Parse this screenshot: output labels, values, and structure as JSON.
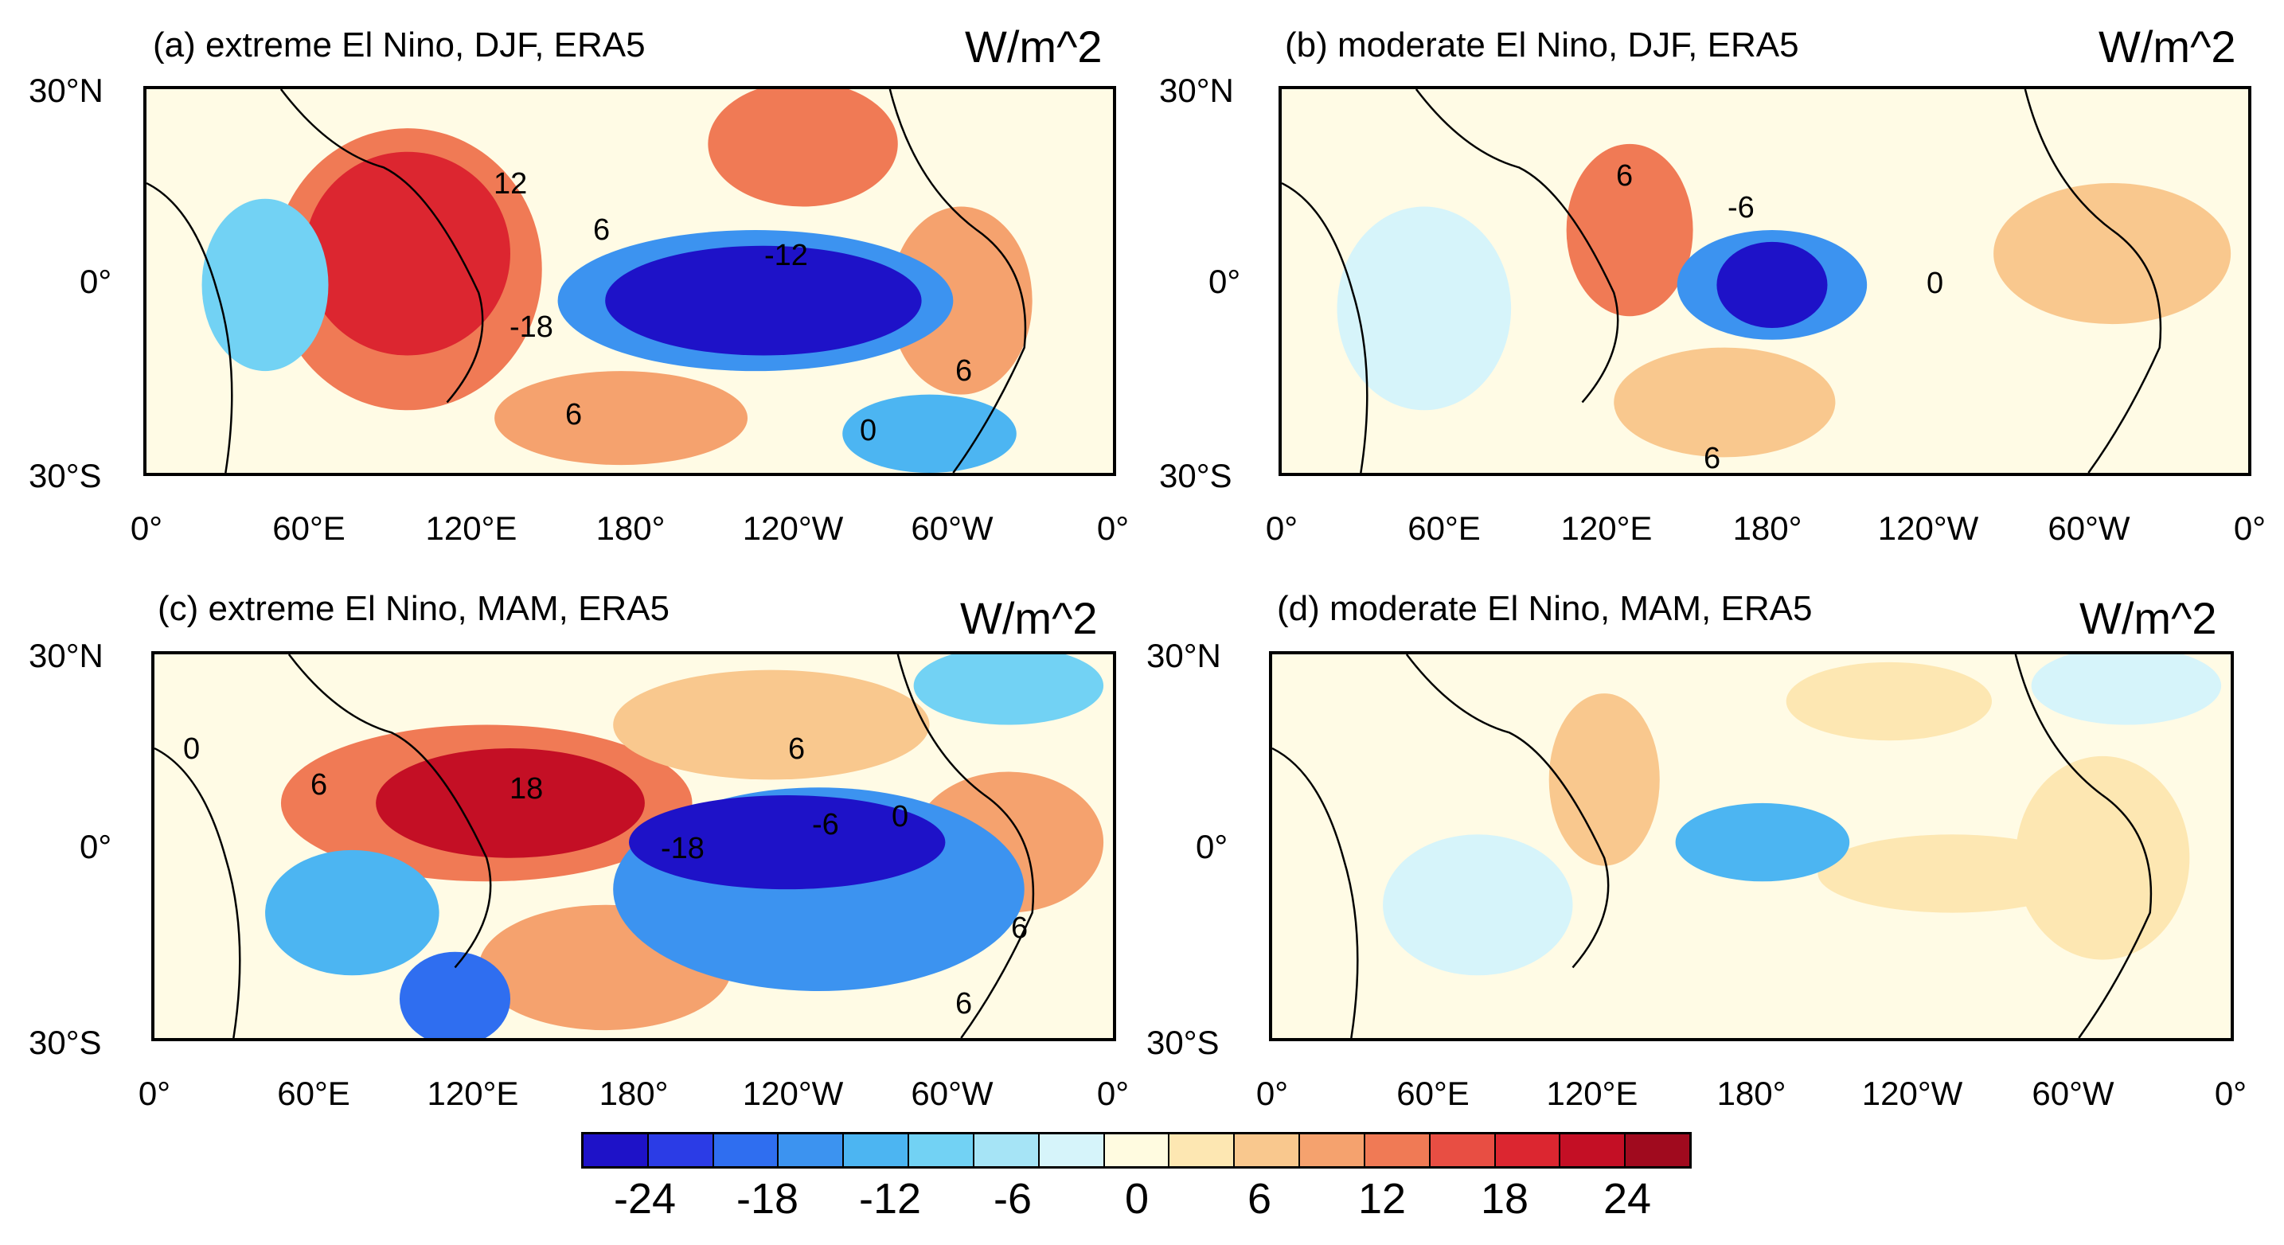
{
  "units": "W/m^2",
  "lat_labels": [
    "30°N",
    "0°",
    "30°S"
  ],
  "lon_labels": [
    "0°",
    "60°E",
    "120°E",
    "180°",
    "120°W",
    "60°W",
    "0°"
  ],
  "panels": [
    {
      "title": "(a) extreme El Nino, DJF, ERA5",
      "units": "W/m^2",
      "contour_labels": [
        "12",
        "6",
        "-12",
        "-18",
        "6",
        "0",
        "6"
      ]
    },
    {
      "title": "(b) moderate El Nino, DJF, ERA5",
      "units": "W/m^2",
      "contour_labels": [
        "6",
        "-6",
        "0",
        "6"
      ]
    },
    {
      "title": "(c) extreme El Nino, MAM, ERA5",
      "units": "W/m^2",
      "contour_labels": [
        "0",
        "6",
        "18",
        "6",
        "-18",
        "-6",
        "0",
        "6",
        "6"
      ]
    },
    {
      "title": "(d) moderate El Nino, MAM, ERA5",
      "units": "W/m^2",
      "contour_labels": []
    }
  ],
  "colorbar": {
    "labels": [
      "-24",
      "-18",
      "-12",
      "-6",
      "0",
      "6",
      "12",
      "18",
      "24"
    ],
    "colors": [
      "#1e12c8",
      "#2b3ce6",
      "#2f6ef0",
      "#3c93f0",
      "#4cb5f2",
      "#72d2f4",
      "#a6e4f6",
      "#d6f4fa",
      "#fffbe0",
      "#fde7b2",
      "#f9c88e",
      "#f5a26e",
      "#f07a55",
      "#e84e43",
      "#dc2630",
      "#c40f25",
      "#a00a1e"
    ]
  },
  "colors": {
    "frame": "#000000",
    "neutral": "#fffbe5"
  }
}
